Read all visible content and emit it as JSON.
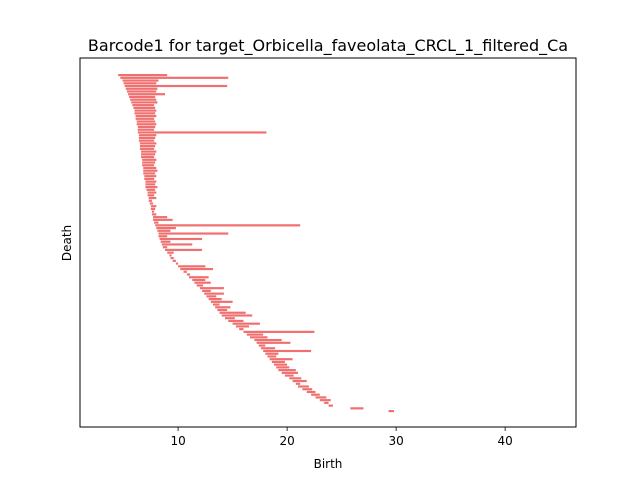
{
  "chart_data": {
    "type": "barcode",
    "title": "Barcode1 for target_Orbicella_faveolata_CRCL_1_filtered_Ca",
    "xlabel": "Birth",
    "ylabel": "Death",
    "xlim": [
      1.0,
      46.5
    ],
    "xticks": [
      10,
      20,
      30,
      40
    ],
    "bar_color": "#f07070",
    "bars": [
      [
        4.5,
        9.0
      ],
      [
        4.7,
        14.6
      ],
      [
        4.9,
        8.2
      ],
      [
        5.0,
        8.0
      ],
      [
        5.1,
        14.5
      ],
      [
        5.2,
        8.1
      ],
      [
        5.3,
        8.0
      ],
      [
        5.4,
        8.8
      ],
      [
        5.5,
        7.9
      ],
      [
        5.6,
        8.0
      ],
      [
        5.7,
        8.1
      ],
      [
        5.8,
        7.8
      ],
      [
        5.9,
        7.9
      ],
      [
        6.0,
        8.0
      ],
      [
        6.0,
        7.9
      ],
      [
        6.1,
        8.0
      ],
      [
        6.1,
        7.8
      ],
      [
        6.2,
        7.9
      ],
      [
        6.2,
        8.0
      ],
      [
        6.3,
        7.9
      ],
      [
        6.3,
        7.8
      ],
      [
        6.3,
        18.1
      ],
      [
        6.4,
        8.0
      ],
      [
        6.4,
        7.9
      ],
      [
        6.4,
        7.8
      ],
      [
        6.5,
        8.0
      ],
      [
        6.5,
        7.9
      ],
      [
        6.5,
        7.8
      ],
      [
        6.6,
        8.0
      ],
      [
        6.6,
        7.9
      ],
      [
        6.6,
        7.8
      ],
      [
        6.7,
        8.0
      ],
      [
        6.7,
        7.9
      ],
      [
        6.7,
        7.8
      ],
      [
        6.8,
        8.0
      ],
      [
        6.8,
        8.1
      ],
      [
        6.8,
        7.9
      ],
      [
        6.9,
        8.0
      ],
      [
        6.9,
        7.8
      ],
      [
        7.0,
        8.0
      ],
      [
        7.0,
        7.9
      ],
      [
        7.0,
        8.1
      ],
      [
        7.1,
        7.9
      ],
      [
        7.2,
        8.0
      ],
      [
        7.2,
        7.8
      ],
      [
        7.3,
        8.0
      ],
      [
        7.3,
        7.6
      ],
      [
        7.4,
        7.7
      ],
      [
        7.5,
        8.0
      ],
      [
        7.5,
        7.9
      ],
      [
        7.6,
        7.8
      ],
      [
        7.6,
        8.0
      ],
      [
        7.7,
        9.0
      ],
      [
        7.7,
        9.5
      ],
      [
        7.8,
        8.2
      ],
      [
        7.9,
        21.2
      ],
      [
        8.0,
        9.8
      ],
      [
        8.1,
        9.3
      ],
      [
        8.2,
        14.6
      ],
      [
        8.2,
        9.0
      ],
      [
        8.3,
        12.2
      ],
      [
        8.4,
        9.3
      ],
      [
        8.5,
        11.3
      ],
      [
        8.6,
        9.0
      ],
      [
        8.8,
        12.2
      ],
      [
        9.0,
        9.6
      ],
      [
        9.2,
        9.4
      ],
      [
        9.3,
        9.6
      ],
      [
        9.5,
        9.8
      ],
      [
        9.8,
        10.0
      ],
      [
        10.0,
        12.5
      ],
      [
        10.2,
        13.2
      ],
      [
        10.5,
        10.8
      ],
      [
        10.8,
        11.1
      ],
      [
        11.0,
        12.8
      ],
      [
        11.3,
        12.5
      ],
      [
        11.5,
        13.0
      ],
      [
        11.7,
        12.3
      ],
      [
        12.0,
        14.2
      ],
      [
        12.2,
        13.0
      ],
      [
        12.4,
        14.2
      ],
      [
        12.6,
        13.5
      ],
      [
        12.8,
        14.0
      ],
      [
        13.0,
        15.0
      ],
      [
        13.2,
        13.8
      ],
      [
        13.4,
        14.8
      ],
      [
        13.6,
        14.5
      ],
      [
        13.8,
        16.2
      ],
      [
        14.0,
        16.8
      ],
      [
        14.3,
        15.2
      ],
      [
        14.6,
        16.0
      ],
      [
        15.0,
        17.5
      ],
      [
        15.3,
        16.5
      ],
      [
        15.6,
        16.0
      ],
      [
        16.0,
        22.5
      ],
      [
        16.3,
        17.8
      ],
      [
        16.6,
        18.2
      ],
      [
        17.0,
        19.5
      ],
      [
        17.2,
        20.3
      ],
      [
        17.4,
        18.0
      ],
      [
        17.6,
        18.9
      ],
      [
        17.8,
        22.2
      ],
      [
        18.0,
        19.2
      ],
      [
        18.2,
        19.0
      ],
      [
        18.4,
        20.5
      ],
      [
        18.6,
        19.8
      ],
      [
        18.8,
        20.0
      ],
      [
        19.0,
        20.2
      ],
      [
        19.2,
        20.8
      ],
      [
        19.5,
        21.0
      ],
      [
        19.8,
        20.6
      ],
      [
        20.2,
        21.3
      ],
      [
        20.5,
        21.8
      ],
      [
        20.8,
        21.2
      ],
      [
        21.0,
        22.0
      ],
      [
        21.4,
        22.3
      ],
      [
        21.8,
        22.6
      ],
      [
        22.2,
        23.0
      ],
      [
        22.6,
        23.6
      ],
      [
        23.0,
        24.0
      ],
      [
        23.4,
        23.8
      ],
      [
        23.8,
        24.2
      ],
      [
        25.8,
        27.0
      ],
      [
        29.3,
        29.8
      ]
    ]
  }
}
